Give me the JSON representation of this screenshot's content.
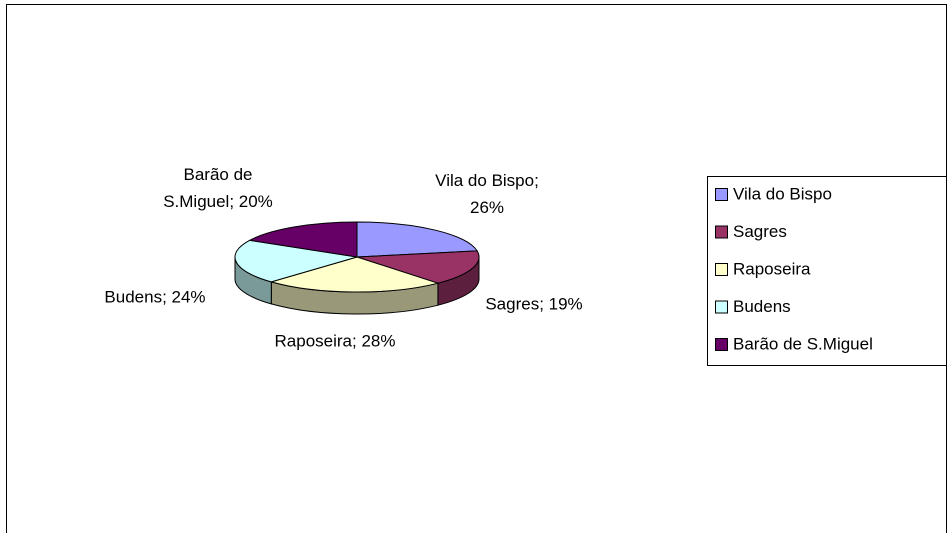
{
  "chart_data": {
    "type": "pie",
    "is_3d": true,
    "categories": [
      "Vila do Bispo",
      "Sagres",
      "Raposeira",
      "Budens",
      "Barão de S.Miguel"
    ],
    "values": [
      26,
      19,
      28,
      24,
      20
    ],
    "value_labels": [
      "Vila do Bispo; 26%",
      "Sagres; 19%",
      "Raposeira; 28%",
      "Budens; 24%",
      "Barão de S.Miguel; 20%"
    ],
    "colors": [
      "#9999ff",
      "#993366",
      "#ffffcc",
      "#ccffff",
      "#660066"
    ],
    "legend": "right"
  }
}
